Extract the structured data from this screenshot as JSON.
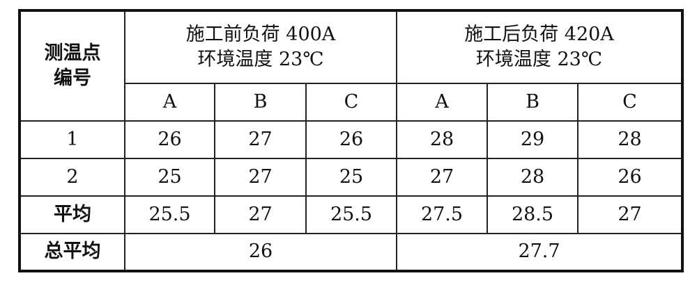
{
  "table": {
    "corner_header": [
      "测温点",
      "编号"
    ],
    "groups": [
      {
        "line1": "施工前负荷 400A",
        "line2": "环境温度 23℃",
        "phases": [
          "A",
          "B",
          "C"
        ]
      },
      {
        "line1": "施工后负荷 420A",
        "line2": "环境温度 23℃",
        "phases": [
          "A",
          "B",
          "C"
        ]
      }
    ],
    "rows": [
      {
        "label": "1",
        "values": [
          "26",
          "27",
          "26",
          "28",
          "29",
          "28"
        ]
      },
      {
        "label": "2",
        "values": [
          "25",
          "27",
          "25",
          "27",
          "28",
          "26"
        ]
      },
      {
        "label": "平均",
        "values": [
          "25.5",
          "27",
          "25.5",
          "27.5",
          "28.5",
          "27"
        ]
      }
    ],
    "total_row": {
      "label": "总平均",
      "values": [
        "26",
        "27.7"
      ]
    }
  }
}
